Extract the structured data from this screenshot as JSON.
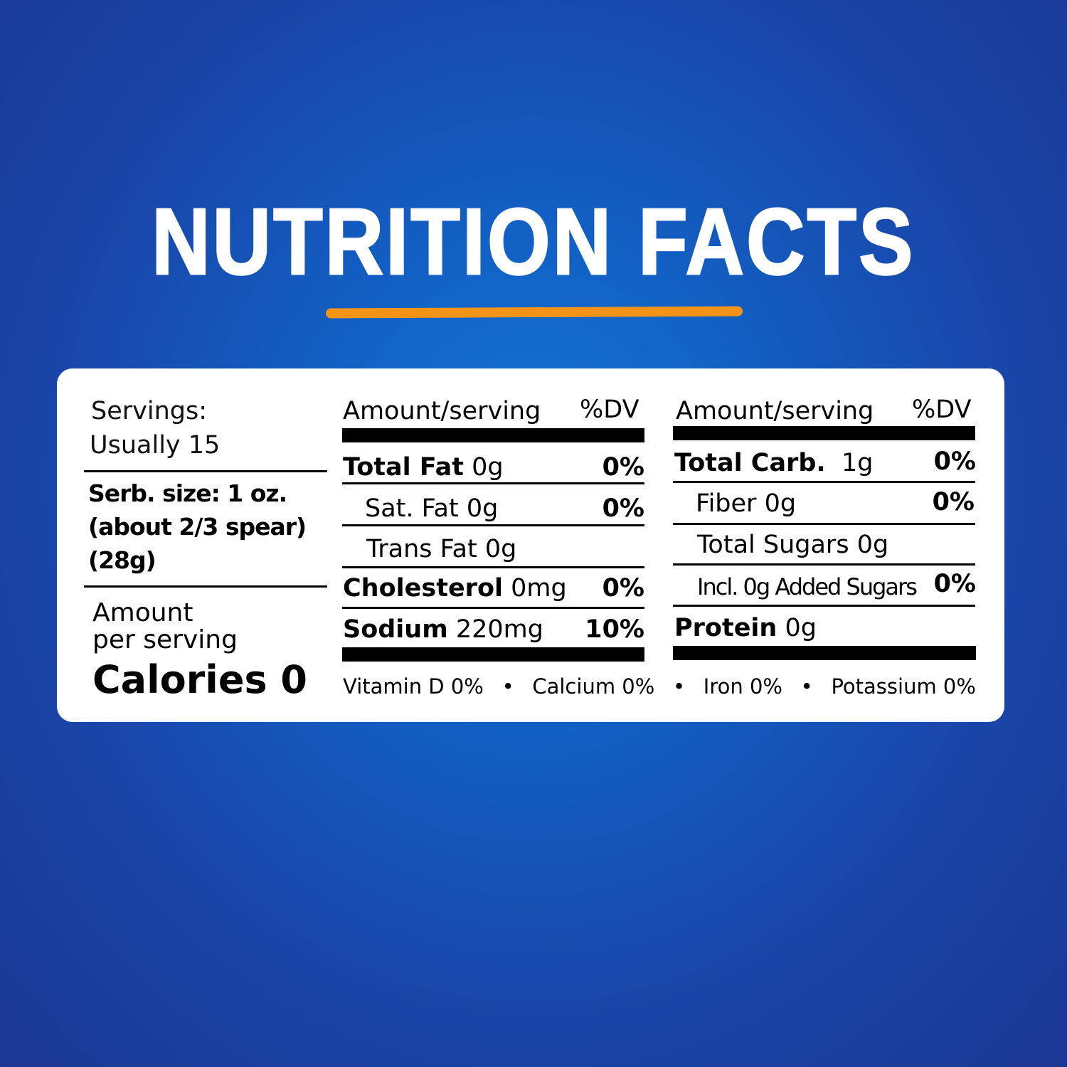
{
  "title": "NUTRITION FACTS",
  "colors": {
    "background": "#1463c8",
    "accent_underline": "#f39419",
    "card": "#ffffff"
  },
  "left": {
    "servings_label": "Servings:",
    "servings_value": "Usually 15",
    "serving_size_line1": "Serb. size: 1 oz.",
    "serving_size_line2": "(about 2/3 spear)",
    "serving_size_line3": "(28g)",
    "amount_line1": "Amount",
    "amount_line2": "per serving",
    "calories": "Calories 0"
  },
  "middle": {
    "header_amount": "Amount/serving",
    "header_dv": "%DV",
    "rows": [
      {
        "name": "Total Fat",
        "amount": "0g",
        "dv": "0%"
      },
      {
        "name": "Sat. Fat",
        "amount": "0g",
        "dv": "0%"
      },
      {
        "name": "Trans Fat",
        "amount": "0g",
        "dv": ""
      },
      {
        "name": "Cholesterol",
        "amount": "0mg",
        "dv": "0%"
      },
      {
        "name": "Sodium",
        "amount": "220mg",
        "dv": "10%"
      }
    ]
  },
  "right": {
    "header_amount": "Amount/serving",
    "header_dv": "%DV",
    "rows": [
      {
        "name": "Total Carb.",
        "amount": "1g",
        "dv": "0%"
      },
      {
        "name": "Fiber",
        "amount": "0g",
        "dv": "0%"
      },
      {
        "name": "Total Sugars",
        "amount": "0g",
        "dv": ""
      },
      {
        "name": "Incl. 0g Added Sugars",
        "amount": "",
        "dv": "0%"
      },
      {
        "name": "Protein",
        "amount": "0g",
        "dv": ""
      }
    ]
  },
  "footer": {
    "vitamin_d": "Vitamin D 0%",
    "calcium": "Calcium 0%",
    "iron": "Iron 0%",
    "potassium": "Potassium 0%",
    "separator": "•"
  }
}
